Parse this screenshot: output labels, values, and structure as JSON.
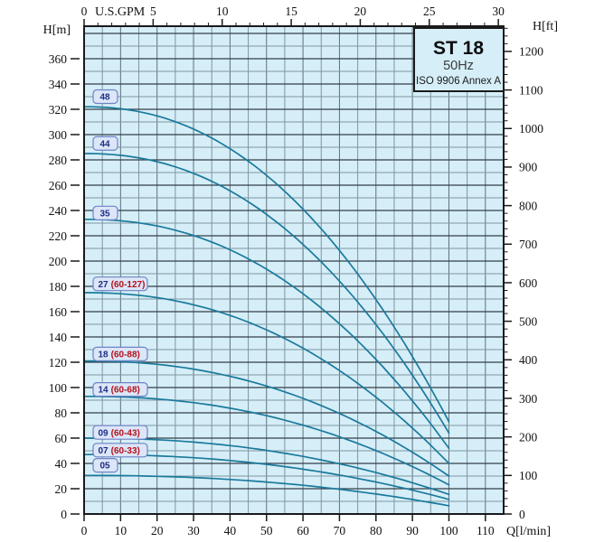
{
  "page": {
    "background": "#ffffff"
  },
  "colors": {
    "plot_bg": "#d6eef8",
    "grid_minor": "#7f96a1",
    "grid_major_h": "#333f47",
    "grid_major_v": "#5d717b",
    "border": "#1a1a1a",
    "tick": "#1a1a1a",
    "curve": "#1a7a9c",
    "label_box_fill": "#dce6f8",
    "label_box_border": "#6e83c4",
    "label_number": "#1c2d85",
    "label_range": "#b5121b"
  },
  "chart_data": {
    "type": "line",
    "title": "ST 18",
    "subtitle": "50Hz",
    "standard": "ISO 9906 Annex A",
    "x_axis_bottom": {
      "label": "Q[l/min]",
      "unit": "l/min",
      "min": 0,
      "max": 115,
      "ticks": [
        0,
        10,
        20,
        30,
        40,
        50,
        60,
        70,
        80,
        90,
        100,
        110
      ]
    },
    "x_axis_top": {
      "label": "U.S.GPM",
      "unit": "US gpm",
      "ticks": [
        0,
        5,
        10,
        15,
        20,
        25,
        30
      ],
      "minor_step_gpm": 1,
      "lmin_per_gpm": 3.785
    },
    "y_axis_left": {
      "label": "H[m]",
      "unit": "m",
      "min": 0,
      "max": 385.7,
      "ticks": [
        0,
        20,
        40,
        60,
        80,
        100,
        120,
        140,
        160,
        180,
        200,
        220,
        240,
        260,
        280,
        300,
        320,
        340,
        360
      ],
      "grid_minor_step_m": 10,
      "grid_major_step_m": 20
    },
    "y_axis_right": {
      "label": "H[ft]",
      "unit": "ft",
      "ticks": [
        0,
        100,
        200,
        300,
        400,
        500,
        600,
        700,
        800,
        900,
        1000,
        1100,
        1200
      ],
      "minor_step_ft": 20,
      "m_per_ft": 0.3048
    },
    "grid": true,
    "curve_exponent": 2.2,
    "series": [
      {
        "label": "48",
        "range": null,
        "h_start_m": 322,
        "h_end_m": 73,
        "q_start_lmin": 0,
        "q_end_lmin": 100,
        "label_center_h_m": 330
      },
      {
        "label": "44",
        "range": null,
        "h_start_m": 285,
        "h_end_m": 64,
        "q_start_lmin": 0,
        "q_end_lmin": 100,
        "label_center_h_m": 293
      },
      {
        "label": "35",
        "range": null,
        "h_start_m": 233,
        "h_end_m": 52,
        "q_start_lmin": 0,
        "q_end_lmin": 100,
        "label_center_h_m": 238
      },
      {
        "label": "27",
        "range": "(60-127)",
        "h_start_m": 175,
        "h_end_m": 40,
        "q_start_lmin": 0,
        "q_end_lmin": 100,
        "label_center_h_m": 182
      },
      {
        "label": "18",
        "range": "(60-88)",
        "h_start_m": 121,
        "h_end_m": 30,
        "q_start_lmin": 0,
        "q_end_lmin": 100,
        "label_center_h_m": 126.5
      },
      {
        "label": "14",
        "range": "(60-68)",
        "h_start_m": 93,
        "h_end_m": 23,
        "q_start_lmin": 0,
        "q_end_lmin": 100,
        "label_center_h_m": 98.5
      },
      {
        "label": "09",
        "range": "(60-43)",
        "h_start_m": 60,
        "h_end_m": 15.5,
        "q_start_lmin": 0,
        "q_end_lmin": 100,
        "label_center_h_m": 64.5
      },
      {
        "label": "07",
        "range": "(60-33)",
        "h_start_m": 47,
        "h_end_m": 11.5,
        "q_start_lmin": 0,
        "q_end_lmin": 100,
        "label_center_h_m": 50.5
      },
      {
        "label": "05",
        "range": null,
        "h_start_m": 30.5,
        "h_end_m": 6.5,
        "q_start_lmin": 0,
        "q_end_lmin": 100,
        "label_center_h_m": 38.5
      }
    ]
  }
}
